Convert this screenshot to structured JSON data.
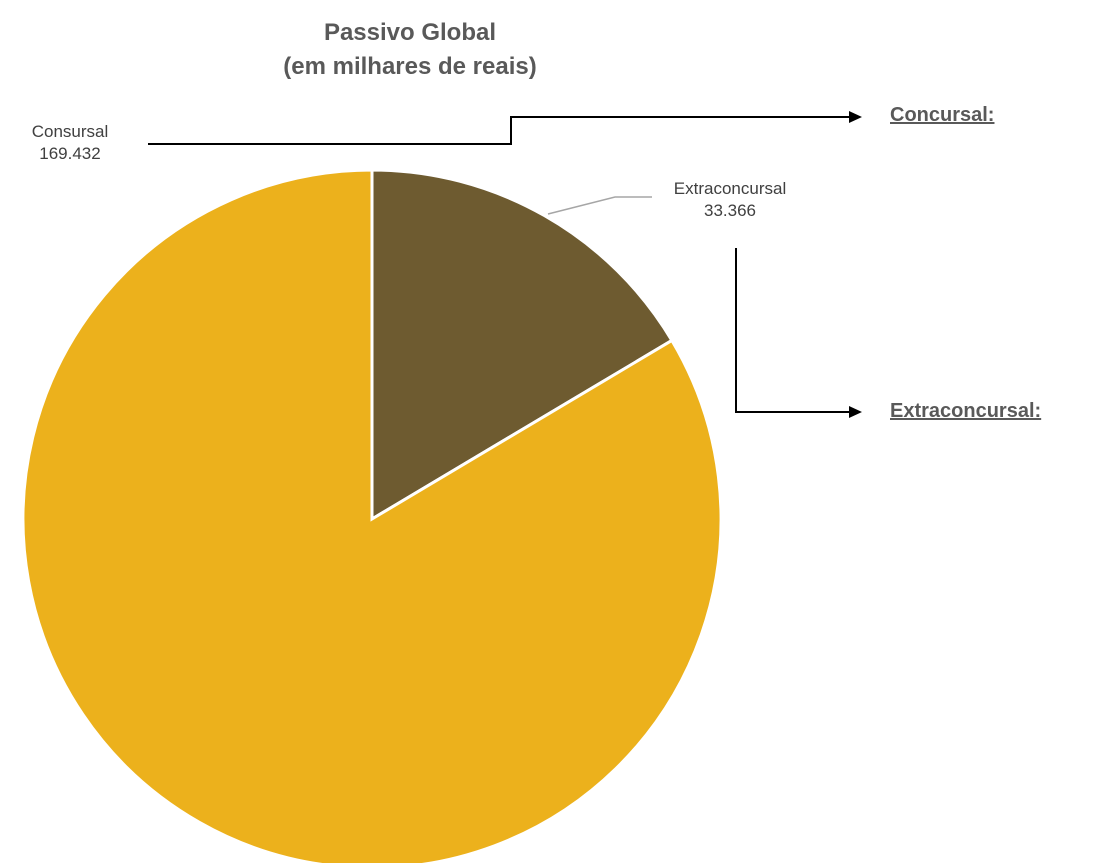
{
  "chart_data": {
    "type": "pie",
    "title": "Passivo Global",
    "subtitle": "(em milhares de reais)",
    "slices": [
      {
        "label": "Extraconcursal",
        "value": 33366,
        "display_value": "33.366",
        "color": "#6e5b30"
      },
      {
        "label": "Consursal",
        "value": 169432,
        "display_value": "169.432",
        "color": "#ecb11c"
      }
    ],
    "start_angle_deg": 0,
    "direction": "clockwise"
  },
  "callouts": {
    "concursal_label": "Concursal:",
    "extraconcursal_label": "Extraconcursal:"
  },
  "colors": {
    "title": "#595959",
    "leader_line": "#a6a6a6",
    "arrow": "#000000"
  }
}
